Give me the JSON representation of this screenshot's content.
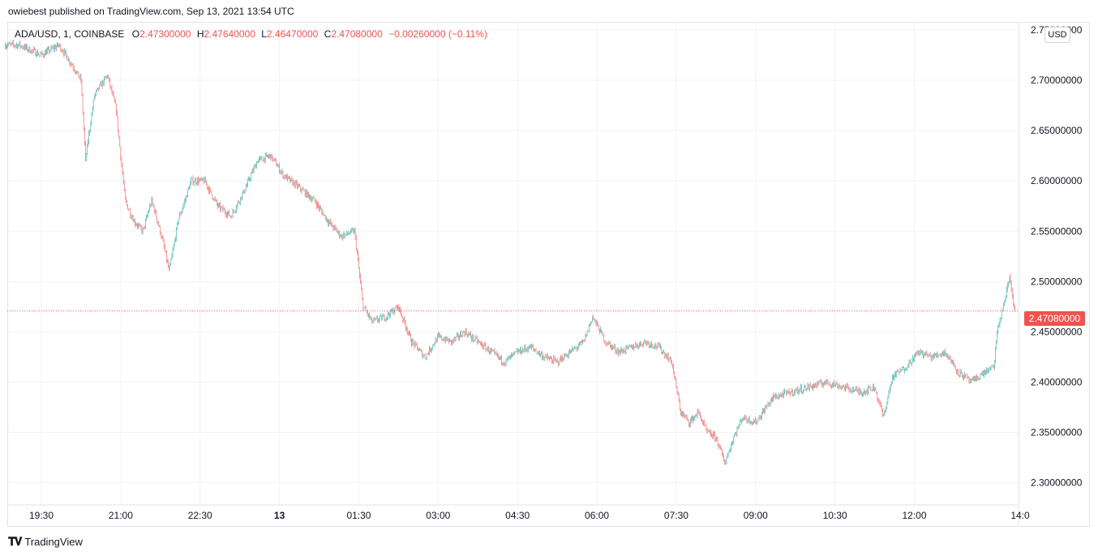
{
  "publisher": "owiebest published on TradingView.com, Sep 13, 2021 13:54 UTC",
  "legend": {
    "symbol": "ADA/USD, 1, COINBASE",
    "o_label": "O",
    "o_value": "2.47300000",
    "h_label": "H",
    "h_value": "2.47640000",
    "l_label": "L",
    "l_value": "2.46470000",
    "c_label": "C",
    "c_value": "2.47080000",
    "change": "−0.00260000 (−0.11%)"
  },
  "currency_button": "USD",
  "last_price_label": "2.47080000",
  "footer_brand": "TradingView",
  "colors": {
    "up": "#26a69a",
    "down": "#ef5350",
    "grid": "#f0f3fa"
  },
  "chart_data": {
    "type": "candlestick",
    "symbol": "ADA/USD",
    "interval": "1",
    "exchange": "COINBASE",
    "ylim": [
      2.278,
      2.758
    ],
    "y_ticks": [
      2.3,
      2.35,
      2.4,
      2.45,
      2.5,
      2.55,
      2.6,
      2.65,
      2.7,
      2.75
    ],
    "y_tick_labels": [
      "2.30000000",
      "2.35000000",
      "2.40000000",
      "2.45000000",
      "2.50000000",
      "2.55000000",
      "2.60000000",
      "2.65000000",
      "2.70000000",
      "2.75000000"
    ],
    "x_ticks": [
      "19:30",
      "21:00",
      "22:30",
      "13",
      "01:30",
      "03:00",
      "04:30",
      "06:00",
      "07:30",
      "09:00",
      "10:30",
      "12:00",
      "14:0"
    ],
    "last_price": 2.4708,
    "grid": true,
    "price_path": [
      {
        "t": "18:49",
        "p": 2.735
      },
      {
        "t": "19:05",
        "p": 2.735
      },
      {
        "t": "19:30",
        "p": 2.725
      },
      {
        "t": "19:50",
        "p": 2.735
      },
      {
        "t": "20:05",
        "p": 2.715
      },
      {
        "t": "20:15",
        "p": 2.7
      },
      {
        "t": "20:20",
        "p": 2.62
      },
      {
        "t": "20:30",
        "p": 2.685
      },
      {
        "t": "20:45",
        "p": 2.705
      },
      {
        "t": "20:55",
        "p": 2.67
      },
      {
        "t": "21:05",
        "p": 2.58
      },
      {
        "t": "21:15",
        "p": 2.56
      },
      {
        "t": "21:25",
        "p": 2.55
      },
      {
        "t": "21:35",
        "p": 2.58
      },
      {
        "t": "21:45",
        "p": 2.55
      },
      {
        "t": "21:55",
        "p": 2.51
      },
      {
        "t": "22:05",
        "p": 2.56
      },
      {
        "t": "22:20",
        "p": 2.6
      },
      {
        "t": "22:35",
        "p": 2.6
      },
      {
        "t": "22:50",
        "p": 2.575
      },
      {
        "t": "23:05",
        "p": 2.565
      },
      {
        "t": "23:20",
        "p": 2.59
      },
      {
        "t": "23:35",
        "p": 2.62
      },
      {
        "t": "23:50",
        "p": 2.625
      },
      {
        "t": "00:05",
        "p": 2.605
      },
      {
        "t": "00:20",
        "p": 2.595
      },
      {
        "t": "00:40",
        "p": 2.58
      },
      {
        "t": "00:55",
        "p": 2.56
      },
      {
        "t": "01:10",
        "p": 2.545
      },
      {
        "t": "01:25",
        "p": 2.55
      },
      {
        "t": "01:35",
        "p": 2.475
      },
      {
        "t": "01:45",
        "p": 2.46
      },
      {
        "t": "02:00",
        "p": 2.465
      },
      {
        "t": "02:15",
        "p": 2.475
      },
      {
        "t": "02:30",
        "p": 2.44
      },
      {
        "t": "02:45",
        "p": 2.425
      },
      {
        "t": "03:00",
        "p": 2.445
      },
      {
        "t": "03:15",
        "p": 2.44
      },
      {
        "t": "03:30",
        "p": 2.45
      },
      {
        "t": "03:45",
        "p": 2.44
      },
      {
        "t": "04:00",
        "p": 2.43
      },
      {
        "t": "04:15",
        "p": 2.42
      },
      {
        "t": "04:30",
        "p": 2.43
      },
      {
        "t": "04:45",
        "p": 2.435
      },
      {
        "t": "05:00",
        "p": 2.425
      },
      {
        "t": "05:15",
        "p": 2.42
      },
      {
        "t": "05:30",
        "p": 2.43
      },
      {
        "t": "05:45",
        "p": 2.44
      },
      {
        "t": "05:55",
        "p": 2.465
      },
      {
        "t": "06:10",
        "p": 2.44
      },
      {
        "t": "06:25",
        "p": 2.43
      },
      {
        "t": "06:40",
        "p": 2.435
      },
      {
        "t": "06:55",
        "p": 2.44
      },
      {
        "t": "07:10",
        "p": 2.435
      },
      {
        "t": "07:25",
        "p": 2.42
      },
      {
        "t": "07:35",
        "p": 2.37
      },
      {
        "t": "07:45",
        "p": 2.36
      },
      {
        "t": "07:55",
        "p": 2.37
      },
      {
        "t": "08:05",
        "p": 2.35
      },
      {
        "t": "08:15",
        "p": 2.345
      },
      {
        "t": "08:25",
        "p": 2.32
      },
      {
        "t": "08:35",
        "p": 2.345
      },
      {
        "t": "08:45",
        "p": 2.365
      },
      {
        "t": "09:00",
        "p": 2.36
      },
      {
        "t": "09:20",
        "p": 2.385
      },
      {
        "t": "09:40",
        "p": 2.39
      },
      {
        "t": "10:00",
        "p": 2.395
      },
      {
        "t": "10:20",
        "p": 2.4
      },
      {
        "t": "10:40",
        "p": 2.395
      },
      {
        "t": "11:00",
        "p": 2.39
      },
      {
        "t": "11:15",
        "p": 2.395
      },
      {
        "t": "11:25",
        "p": 2.365
      },
      {
        "t": "11:35",
        "p": 2.405
      },
      {
        "t": "11:50",
        "p": 2.415
      },
      {
        "t": "12:05",
        "p": 2.43
      },
      {
        "t": "12:20",
        "p": 2.425
      },
      {
        "t": "12:35",
        "p": 2.43
      },
      {
        "t": "12:50",
        "p": 2.41
      },
      {
        "t": "13:05",
        "p": 2.4
      },
      {
        "t": "13:20",
        "p": 2.41
      },
      {
        "t": "13:30",
        "p": 2.415
      },
      {
        "t": "13:35",
        "p": 2.455
      },
      {
        "t": "13:45",
        "p": 2.49
      },
      {
        "t": "13:48",
        "p": 2.505
      },
      {
        "t": "13:52",
        "p": 2.48
      },
      {
        "t": "13:54",
        "p": 2.471
      }
    ]
  }
}
